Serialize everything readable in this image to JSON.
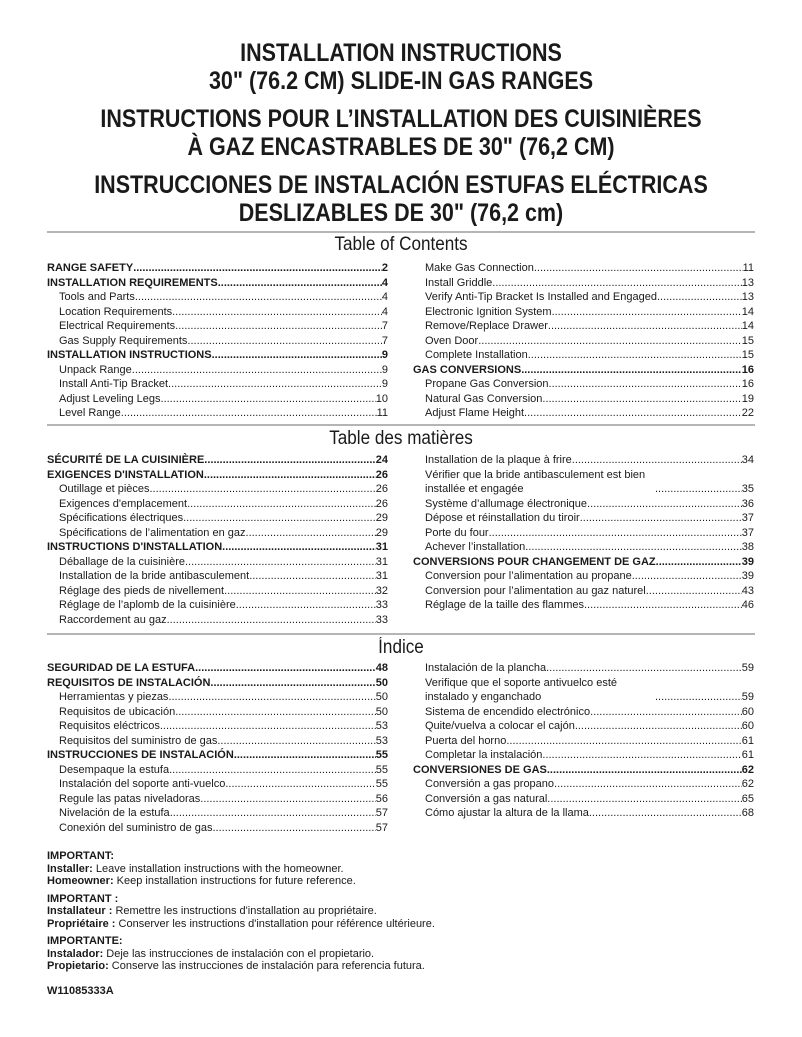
{
  "titles": {
    "en": [
      "INSTALLATION INSTRUCTIONS",
      "30\" (76.2 CM) SLIDE-IN GAS RANGES"
    ],
    "fr": [
      "INSTRUCTIONS POUR L’INSTALLATION DES CUISINIÈRES",
      "À GAZ ENCASTRABLES DE 30\" (76,2 CM)"
    ],
    "es": [
      "INSTRUCCIONES DE INSTALACIÓN ESTUFAS ELÉCTRICAS",
      "DESLIZABLES DE 30\" (76,2 cm)"
    ]
  },
  "sections": [
    {
      "heading": "Table of Contents",
      "left": [
        {
          "label": "RANGE SAFETY",
          "page": "2",
          "level": 0
        },
        {
          "label": "INSTALLATION REQUIREMENTS",
          "page": "4",
          "level": 0
        },
        {
          "label": "Tools and Parts",
          "page": "4",
          "level": 1
        },
        {
          "label": "Location Requirements",
          "page": "4",
          "level": 1
        },
        {
          "label": "Electrical Requirements",
          "page": "7",
          "level": 1
        },
        {
          "label": "Gas Supply Requirements",
          "page": "7",
          "level": 1
        },
        {
          "label": "INSTALLATION INSTRUCTIONS",
          "page": "9",
          "level": 0
        },
        {
          "label": "Unpack Range",
          "page": "9",
          "level": 1
        },
        {
          "label": "Install Anti-Tip Bracket",
          "page": "9",
          "level": 1
        },
        {
          "label": "Adjust Leveling Legs",
          "page": "10",
          "level": 1
        },
        {
          "label": "Level Range",
          "page": "11",
          "level": 1
        }
      ],
      "right": [
        {
          "label": "Make Gas Connection",
          "page": "11",
          "level": 1
        },
        {
          "label": "Install Griddle",
          "page": "13",
          "level": 1
        },
        {
          "label": "Verify Anti-Tip Bracket Is Installed and Engaged",
          "page": "13",
          "level": 1
        },
        {
          "label": "Electronic Ignition System",
          "page": "14",
          "level": 1
        },
        {
          "label": "Remove/Replace Drawer",
          "page": "14",
          "level": 1
        },
        {
          "label": "Oven Door",
          "page": "15",
          "level": 1
        },
        {
          "label": "Complete Installation",
          "page": "15",
          "level": 1
        },
        {
          "label": "GAS CONVERSIONS",
          "page": "16",
          "level": 0
        },
        {
          "label": "Propane Gas Conversion",
          "page": "16",
          "level": 1
        },
        {
          "label": "Natural Gas Conversion",
          "page": "19",
          "level": 1
        },
        {
          "label": "Adjust Flame Height",
          "page": "22",
          "level": 1
        }
      ]
    },
    {
      "heading": "Table des matières",
      "left": [
        {
          "label": "SÉCURITÉ DE LA CUISINIÈRE",
          "page": "24",
          "level": 0
        },
        {
          "label": "EXIGENCES D'INSTALLATION",
          "page": "26",
          "level": 0
        },
        {
          "label": "Outillage et pièces",
          "page": "26",
          "level": 1
        },
        {
          "label": "Exigences d'emplacement",
          "page": "26",
          "level": 1
        },
        {
          "label": "Spécifications électriques",
          "page": "29",
          "level": 1
        },
        {
          "label": "Spécifications de l’alimentation en gaz",
          "page": "29",
          "level": 1
        },
        {
          "label": "INSTRUCTIONS D'INSTALLATION",
          "page": "31",
          "level": 0
        },
        {
          "label": "Déballage de la cuisinière",
          "page": "31",
          "level": 1
        },
        {
          "label": "Installation de la bride antibasculement",
          "page": "31",
          "level": 1
        },
        {
          "label": "Réglage des pieds de nivellement",
          "page": "32",
          "level": 1
        },
        {
          "label": "Réglage de l’aplomb de la cuisinière",
          "page": "33",
          "level": 1
        },
        {
          "label": "Raccordement au gaz",
          "page": "33",
          "level": 1
        }
      ],
      "right": [
        {
          "label": "Installation de la plaque à frire",
          "page": "34",
          "level": 1
        },
        {
          "label": "Vérifier que la bride antibasculement est bien installée et engagée",
          "page": "35",
          "level": 1,
          "two": true
        },
        {
          "label": "Système d’allumage électronique",
          "page": "36",
          "level": 1
        },
        {
          "label": "Dépose et réinstallation du tiroir",
          "page": "37",
          "level": 1
        },
        {
          "label": "Porte du four",
          "page": "37",
          "level": 1
        },
        {
          "label": "Achever l’installation",
          "page": "38",
          "level": 1
        },
        {
          "label": "CONVERSIONS POUR CHANGEMENT DE GAZ",
          "page": "39",
          "level": 0
        },
        {
          "label": "Conversion pour l’alimentation au propane",
          "page": "39",
          "level": 1
        },
        {
          "label": "Conversion pour l’alimentation au gaz naturel",
          "page": "43",
          "level": 1
        },
        {
          "label": "Réglage de la taille des flammes",
          "page": "46",
          "level": 1
        }
      ]
    },
    {
      "heading": "Índice",
      "left": [
        {
          "label": "SEGURIDAD DE LA ESTUFA",
          "page": "48",
          "level": 0
        },
        {
          "label": "REQUISITOS DE INSTALACIÓN",
          "page": "50",
          "level": 0
        },
        {
          "label": "Herramientas y piezas",
          "page": "50",
          "level": 1
        },
        {
          "label": "Requisitos de ubicación",
          "page": "50",
          "level": 1
        },
        {
          "label": "Requisitos eléctricos",
          "page": "53",
          "level": 1
        },
        {
          "label": "Requisitos del suministro de gas",
          "page": "53",
          "level": 1
        },
        {
          "label": "INSTRUCCIONES DE INSTALACIÓN",
          "page": "55",
          "level": 0
        },
        {
          "label": "Desempaque la estufa",
          "page": "55",
          "level": 1
        },
        {
          "label": "Instalación del soporte anti-vuelco",
          "page": "55",
          "level": 1
        },
        {
          "label": "Regule las patas niveladoras",
          "page": "56",
          "level": 1
        },
        {
          "label": "Nivelación de la estufa",
          "page": "57",
          "level": 1
        },
        {
          "label": "Conexión del suministro de gas",
          "page": "57",
          "level": 1
        }
      ],
      "right": [
        {
          "label": "Instalación de la plancha",
          "page": "59",
          "level": 1
        },
        {
          "label": "Verifique que el soporte antivuelco esté instalado y enganchado",
          "page": "59",
          "level": 1,
          "two": true
        },
        {
          "label": "Sistema de encendido electrónico",
          "page": "60",
          "level": 1
        },
        {
          "label": "Quite/vuelva a colocar el cajón",
          "page": "60",
          "level": 1
        },
        {
          "label": "Puerta del horno",
          "page": "61",
          "level": 1
        },
        {
          "label": "Completar la instalación",
          "page": "61",
          "level": 1
        },
        {
          "label": "CONVERSIONES DE GAS",
          "page": "62",
          "level": 0
        },
        {
          "label": "Conversión a gas propano",
          "page": "62",
          "level": 1
        },
        {
          "label": "Conversión a gas natural",
          "page": "65",
          "level": 1
        },
        {
          "label": "Cómo ajustar la altura de la llama",
          "page": "68",
          "level": 1
        }
      ]
    }
  ],
  "important": [
    {
      "heading": "IMPORTANT:",
      "lines": [
        {
          "label": "Installer:",
          "text": " Leave installation instructions with the homeowner."
        },
        {
          "label": "Homeowner:",
          "text": " Keep installation instructions for future reference."
        }
      ]
    },
    {
      "heading": "IMPORTANT :",
      "lines": [
        {
          "label": "Installateur :",
          "text": " Remettre les instructions d'installation au propriétaire."
        },
        {
          "label": "Propriétaire :",
          "text": " Conserver les instructions d'installation pour référence ultérieure."
        }
      ]
    },
    {
      "heading": "IMPORTANTE:",
      "lines": [
        {
          "label": "Instalador:",
          "text": " Deje las instrucciones de instalación con el propietario."
        },
        {
          "label": "Propietario:",
          "text": " Conserve las instrucciones de instalación para referencia futura."
        }
      ]
    }
  ],
  "part_number": "W11085333A"
}
